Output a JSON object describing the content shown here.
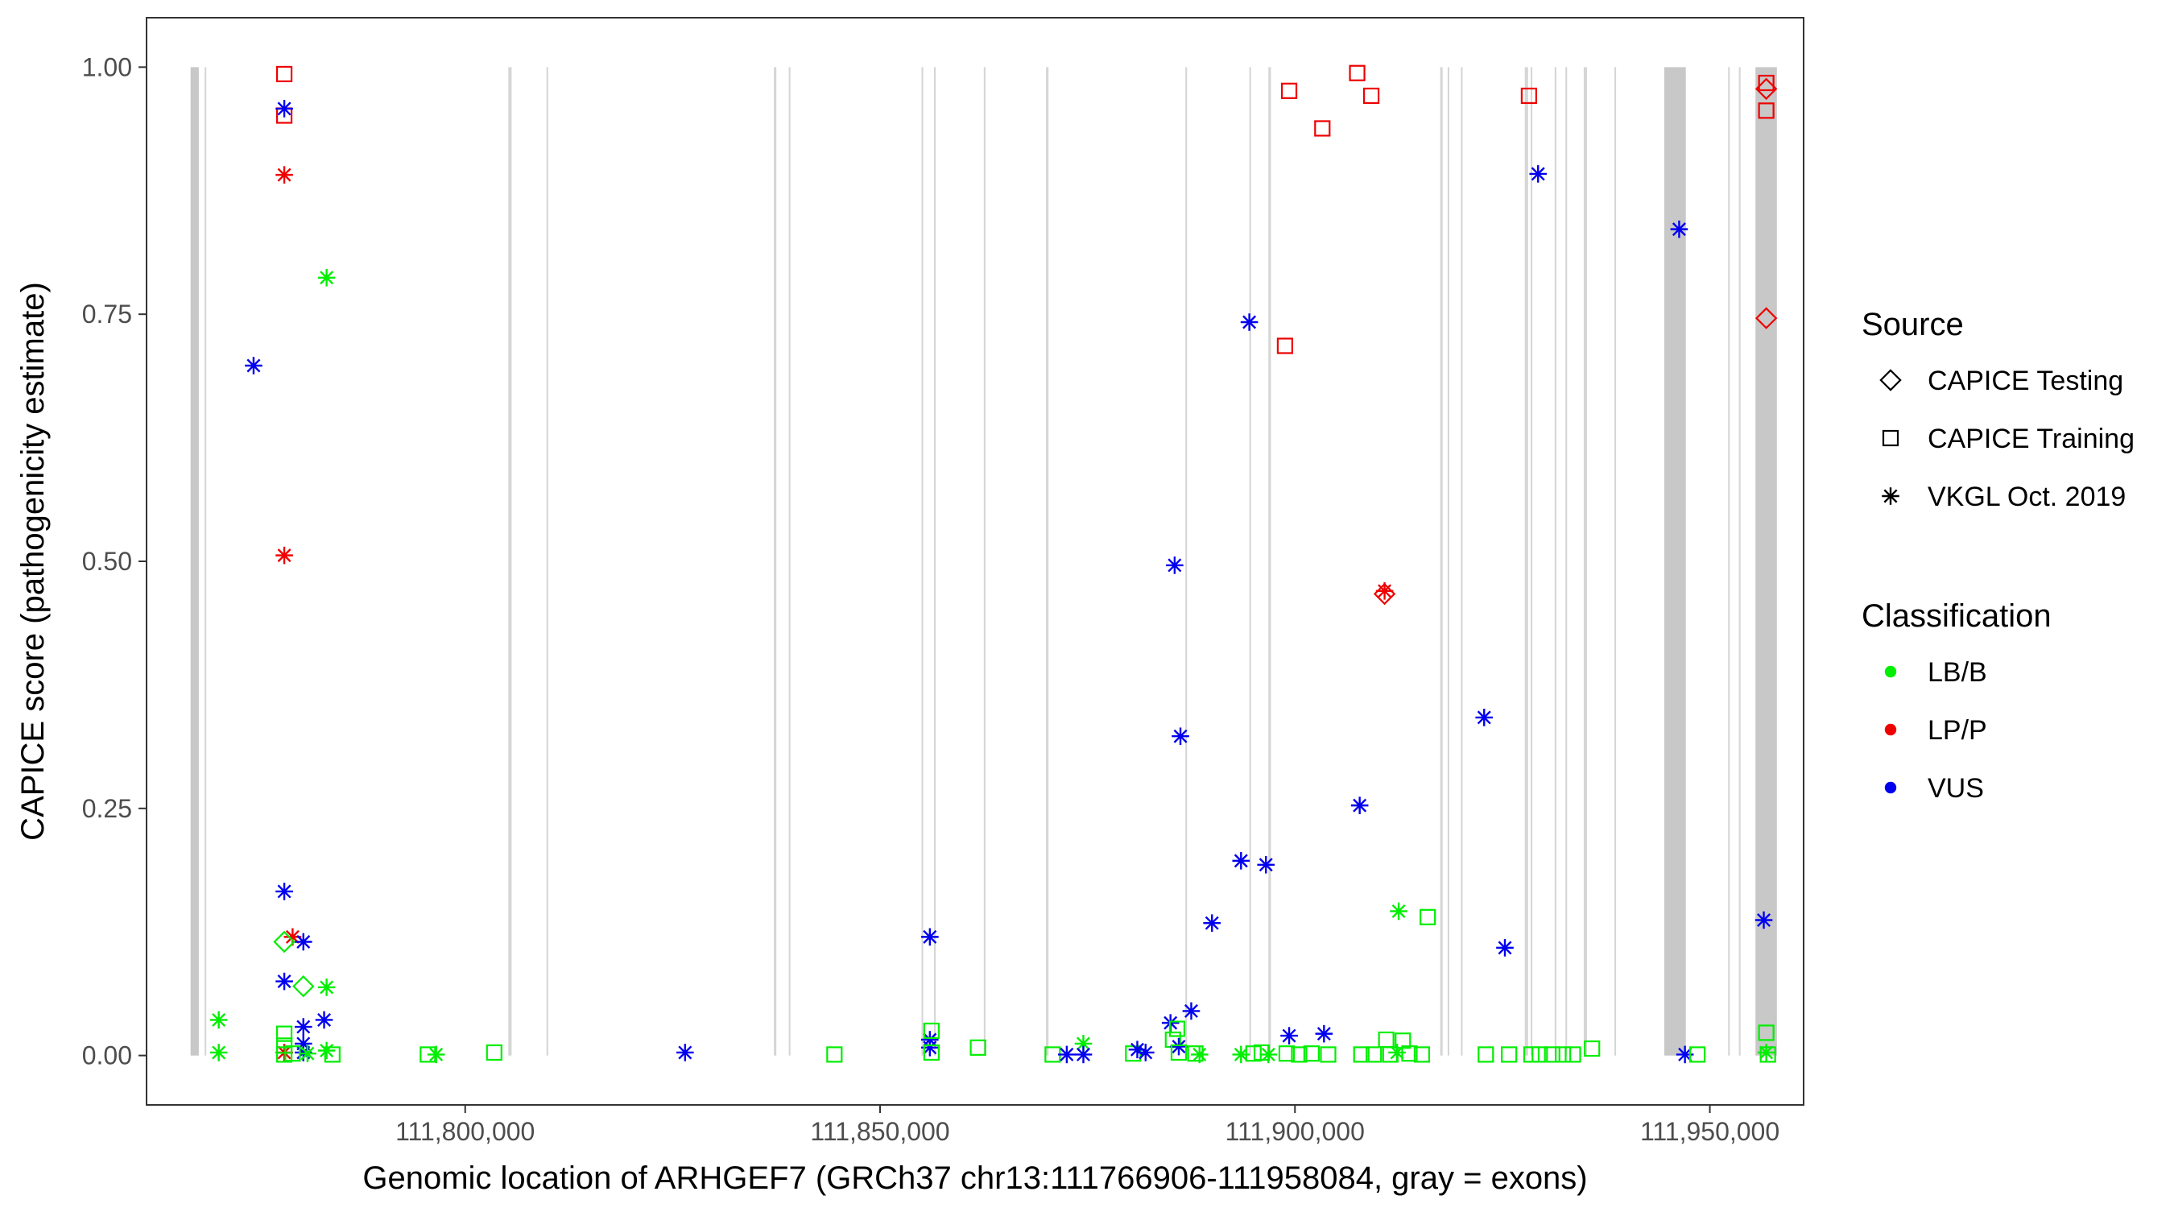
{
  "chart_data": {
    "type": "scatter",
    "xlabel": "Genomic location of ARHGEF7 (GRCh37 chr13:111766906-111958084, gray = exons)",
    "ylabel": "CAPICE score (pathogenicity estimate)",
    "xlim": [
      111761600,
      111961300
    ],
    "ylim": [
      -0.05,
      1.05
    ],
    "x_ticks": [
      {
        "value": 111800000,
        "label": "111,800,000"
      },
      {
        "value": 111850000,
        "label": "111,850,000"
      },
      {
        "value": 111900000,
        "label": "111,900,000"
      },
      {
        "value": 111950000,
        "label": "111,950,000"
      }
    ],
    "y_ticks": [
      {
        "value": 0.0,
        "label": "0.00"
      },
      {
        "value": 0.25,
        "label": "0.25"
      },
      {
        "value": 0.5,
        "label": "0.50"
      },
      {
        "value": 0.75,
        "label": "0.75"
      },
      {
        "value": 1.0,
        "label": "1.00"
      }
    ],
    "grid": false,
    "exons": [
      {
        "start": 111766906,
        "end": 111767900
      },
      {
        "start": 111768600,
        "end": 111768800
      },
      {
        "start": 111805200,
        "end": 111805600
      },
      {
        "start": 111809800,
        "end": 111810000
      },
      {
        "start": 111837200,
        "end": 111837500
      },
      {
        "start": 111839000,
        "end": 111839200
      },
      {
        "start": 111855000,
        "end": 111855200
      },
      {
        "start": 111856500,
        "end": 111856700
      },
      {
        "start": 111862500,
        "end": 111862700
      },
      {
        "start": 111870000,
        "end": 111870300
      },
      {
        "start": 111886800,
        "end": 111887000
      },
      {
        "start": 111894500,
        "end": 111894700
      },
      {
        "start": 111896800,
        "end": 111897100
      },
      {
        "start": 111917500,
        "end": 111917800
      },
      {
        "start": 111918400,
        "end": 111918600
      },
      {
        "start": 111920000,
        "end": 111920200
      },
      {
        "start": 111927700,
        "end": 111928100
      },
      {
        "start": 111928400,
        "end": 111928600
      },
      {
        "start": 111931300,
        "end": 111931500
      },
      {
        "start": 111932600,
        "end": 111932800
      },
      {
        "start": 111934800,
        "end": 111935200
      },
      {
        "start": 111938500,
        "end": 111938700
      },
      {
        "start": 111944500,
        "end": 111947100
      },
      {
        "start": 111952200,
        "end": 111952400
      },
      {
        "start": 111953500,
        "end": 111953700
      },
      {
        "start": 111955500,
        "end": 111958084
      }
    ],
    "legend": {
      "placement": "right",
      "source_title": "Source",
      "source_entries": [
        {
          "label": "CAPICE Testing",
          "shape": "diamond"
        },
        {
          "label": "CAPICE Training",
          "shape": "square"
        },
        {
          "label": "VKGL Oct. 2019",
          "shape": "asterisk"
        }
      ],
      "classification_title": "Classification",
      "classification_entries": [
        {
          "label": "LB/B",
          "color": "#00ee00"
        },
        {
          "label": "LP/P",
          "color": "#ee0000"
        },
        {
          "label": "VUS",
          "color": "#0000ee"
        }
      ]
    },
    "colors": {
      "LB/B": "#00ee00",
      "LP/P": "#ee0000",
      "VUS": "#0000ee"
    },
    "points": [
      {
        "x": 111778200,
        "y": 0.993,
        "source": "CAPICE Training",
        "class": "LP/P"
      },
      {
        "x": 111778200,
        "y": 0.951,
        "source": "CAPICE Training",
        "class": "LP/P"
      },
      {
        "x": 111778200,
        "y": 0.891,
        "source": "VKGL Oct. 2019",
        "class": "LP/P"
      },
      {
        "x": 111778200,
        "y": 0.506,
        "source": "VKGL Oct. 2019",
        "class": "LP/P"
      },
      {
        "x": 111779200,
        "y": 0.12,
        "source": "VKGL Oct. 2019",
        "class": "LP/P"
      },
      {
        "x": 111778200,
        "y": 0.003,
        "source": "VKGL Oct. 2019",
        "class": "LP/P"
      },
      {
        "x": 111778200,
        "y": 0.958,
        "source": "VKGL Oct. 2019",
        "class": "VUS"
      },
      {
        "x": 111774500,
        "y": 0.698,
        "source": "VKGL Oct. 2019",
        "class": "VUS"
      },
      {
        "x": 111778200,
        "y": 0.166,
        "source": "VKGL Oct. 2019",
        "class": "VUS"
      },
      {
        "x": 111780500,
        "y": 0.115,
        "source": "VKGL Oct. 2019",
        "class": "VUS"
      },
      {
        "x": 111778200,
        "y": 0.075,
        "source": "VKGL Oct. 2019",
        "class": "VUS"
      },
      {
        "x": 111783000,
        "y": 0.036,
        "source": "VKGL Oct. 2019",
        "class": "VUS"
      },
      {
        "x": 111780500,
        "y": 0.029,
        "source": "VKGL Oct. 2019",
        "class": "VUS"
      },
      {
        "x": 111780500,
        "y": 0.012,
        "source": "VKGL Oct. 2019",
        "class": "VUS"
      },
      {
        "x": 111780500,
        "y": 0.003,
        "source": "VKGL Oct. 2019",
        "class": "VUS"
      },
      {
        "x": 111783300,
        "y": 0.787,
        "source": "VKGL Oct. 2019",
        "class": "LB/B"
      },
      {
        "x": 111778200,
        "y": 0.115,
        "source": "CAPICE Testing",
        "class": "LB/B"
      },
      {
        "x": 111780500,
        "y": 0.07,
        "source": "CAPICE Testing",
        "class": "LB/B"
      },
      {
        "x": 111783300,
        "y": 0.069,
        "source": "VKGL Oct. 2019",
        "class": "LB/B"
      },
      {
        "x": 111770300,
        "y": 0.036,
        "source": "VKGL Oct. 2019",
        "class": "LB/B"
      },
      {
        "x": 111770300,
        "y": 0.003,
        "source": "VKGL Oct. 2019",
        "class": "LB/B"
      },
      {
        "x": 111778200,
        "y": 0.022,
        "source": "CAPICE Training",
        "class": "LB/B"
      },
      {
        "x": 111778200,
        "y": 0.01,
        "source": "CAPICE Training",
        "class": "LB/B"
      },
      {
        "x": 111778200,
        "y": 0.001,
        "source": "CAPICE Training",
        "class": "LB/B"
      },
      {
        "x": 111779200,
        "y": 0.002,
        "source": "CAPICE Training",
        "class": "LB/B"
      },
      {
        "x": 111781000,
        "y": 0.002,
        "source": "VKGL Oct. 2019",
        "class": "LB/B"
      },
      {
        "x": 111783300,
        "y": 0.005,
        "source": "VKGL Oct. 2019",
        "class": "LB/B"
      },
      {
        "x": 111784000,
        "y": 0.001,
        "source": "CAPICE Training",
        "class": "LB/B"
      },
      {
        "x": 111795500,
        "y": 0.001,
        "source": "CAPICE Training",
        "class": "LB/B"
      },
      {
        "x": 111796500,
        "y": 0.001,
        "source": "VKGL Oct. 2019",
        "class": "LB/B"
      },
      {
        "x": 111803500,
        "y": 0.003,
        "source": "CAPICE Training",
        "class": "LB/B"
      },
      {
        "x": 111826500,
        "y": 0.003,
        "source": "VKGL Oct. 2019",
        "class": "VUS"
      },
      {
        "x": 111844500,
        "y": 0.001,
        "source": "CAPICE Training",
        "class": "LB/B"
      },
      {
        "x": 111856000,
        "y": 0.12,
        "source": "VKGL Oct. 2019",
        "class": "VUS"
      },
      {
        "x": 111856000,
        "y": 0.016,
        "source": "VKGL Oct. 2019",
        "class": "VUS"
      },
      {
        "x": 111856000,
        "y": 0.008,
        "source": "VKGL Oct. 2019",
        "class": "VUS"
      },
      {
        "x": 111856200,
        "y": 0.025,
        "source": "CAPICE Training",
        "class": "LB/B"
      },
      {
        "x": 111856200,
        "y": 0.003,
        "source": "CAPICE Training",
        "class": "LB/B"
      },
      {
        "x": 111861800,
        "y": 0.008,
        "source": "CAPICE Training",
        "class": "LB/B"
      },
      {
        "x": 111870800,
        "y": 0.001,
        "source": "CAPICE Training",
        "class": "LB/B"
      },
      {
        "x": 111872500,
        "y": 0.001,
        "source": "VKGL Oct. 2019",
        "class": "VUS"
      },
      {
        "x": 111874500,
        "y": 0.012,
        "source": "VKGL Oct. 2019",
        "class": "LB/B"
      },
      {
        "x": 111874500,
        "y": 0.001,
        "source": "VKGL Oct. 2019",
        "class": "VUS"
      },
      {
        "x": 111880500,
        "y": 0.002,
        "source": "CAPICE Training",
        "class": "LB/B"
      },
      {
        "x": 111881000,
        "y": 0.006,
        "source": "VKGL Oct. 2019",
        "class": "VUS"
      },
      {
        "x": 111882000,
        "y": 0.003,
        "source": "VKGL Oct. 2019",
        "class": "VUS"
      },
      {
        "x": 111885000,
        "y": 0.033,
        "source": "VKGL Oct. 2019",
        "class": "VUS"
      },
      {
        "x": 111885300,
        "y": 0.016,
        "source": "CAPICE Training",
        "class": "LB/B"
      },
      {
        "x": 111885500,
        "y": 0.496,
        "source": "VKGL Oct. 2019",
        "class": "VUS"
      },
      {
        "x": 111885800,
        "y": 0.027,
        "source": "CAPICE Training",
        "class": "LB/B"
      },
      {
        "x": 111886200,
        "y": 0.323,
        "source": "VKGL Oct. 2019",
        "class": "VUS"
      },
      {
        "x": 111886000,
        "y": 0.009,
        "source": "VKGL Oct. 2019",
        "class": "VUS"
      },
      {
        "x": 111886000,
        "y": 0.003,
        "source": "CAPICE Training",
        "class": "LB/B"
      },
      {
        "x": 111887500,
        "y": 0.045,
        "source": "VKGL Oct. 2019",
        "class": "VUS"
      },
      {
        "x": 111888000,
        "y": 0.002,
        "source": "CAPICE Training",
        "class": "LB/B"
      },
      {
        "x": 111888500,
        "y": 0.001,
        "source": "VKGL Oct. 2019",
        "class": "LB/B"
      },
      {
        "x": 111890000,
        "y": 0.134,
        "source": "VKGL Oct. 2019",
        "class": "VUS"
      },
      {
        "x": 111893500,
        "y": 0.197,
        "source": "VKGL Oct. 2019",
        "class": "VUS"
      },
      {
        "x": 111893500,
        "y": 0.001,
        "source": "VKGL Oct. 2019",
        "class": "LB/B"
      },
      {
        "x": 111894500,
        "y": 0.742,
        "source": "VKGL Oct. 2019",
        "class": "VUS"
      },
      {
        "x": 111895000,
        "y": 0.002,
        "source": "CAPICE Training",
        "class": "LB/B"
      },
      {
        "x": 111896000,
        "y": 0.003,
        "source": "CAPICE Training",
        "class": "LB/B"
      },
      {
        "x": 111896500,
        "y": 0.193,
        "source": "VKGL Oct. 2019",
        "class": "VUS"
      },
      {
        "x": 111896800,
        "y": 0.001,
        "source": "VKGL Oct. 2019",
        "class": "LB/B"
      },
      {
        "x": 111898800,
        "y": 0.718,
        "source": "CAPICE Training",
        "class": "LP/P"
      },
      {
        "x": 111899300,
        "y": 0.976,
        "source": "CAPICE Training",
        "class": "LP/P"
      },
      {
        "x": 111899300,
        "y": 0.02,
        "source": "VKGL Oct. 2019",
        "class": "VUS"
      },
      {
        "x": 111899000,
        "y": 0.002,
        "source": "CAPICE Training",
        "class": "LB/B"
      },
      {
        "x": 111900500,
        "y": 0.001,
        "source": "CAPICE Training",
        "class": "LB/B"
      },
      {
        "x": 111902000,
        "y": 0.002,
        "source": "CAPICE Training",
        "class": "LB/B"
      },
      {
        "x": 111903300,
        "y": 0.938,
        "source": "CAPICE Training",
        "class": "LP/P"
      },
      {
        "x": 111903500,
        "y": 0.022,
        "source": "VKGL Oct. 2019",
        "class": "VUS"
      },
      {
        "x": 111904000,
        "y": 0.001,
        "source": "CAPICE Training",
        "class": "LB/B"
      },
      {
        "x": 111907500,
        "y": 0.994,
        "source": "CAPICE Training",
        "class": "LP/P"
      },
      {
        "x": 111907800,
        "y": 0.253,
        "source": "VKGL Oct. 2019",
        "class": "VUS"
      },
      {
        "x": 111908000,
        "y": 0.001,
        "source": "CAPICE Training",
        "class": "LB/B"
      },
      {
        "x": 111909200,
        "y": 0.971,
        "source": "CAPICE Training",
        "class": "LP/P"
      },
      {
        "x": 111909500,
        "y": 0.001,
        "source": "CAPICE Training",
        "class": "LB/B"
      },
      {
        "x": 111910800,
        "y": 0.467,
        "source": "CAPICE Testing",
        "class": "LP/P"
      },
      {
        "x": 111910800,
        "y": 0.47,
        "source": "VKGL Oct. 2019",
        "class": "LP/P"
      },
      {
        "x": 111911000,
        "y": 0.016,
        "source": "CAPICE Training",
        "class": "LB/B"
      },
      {
        "x": 111911500,
        "y": 0.001,
        "source": "CAPICE Training",
        "class": "LB/B"
      },
      {
        "x": 111912500,
        "y": 0.146,
        "source": "VKGL Oct. 2019",
        "class": "LB/B"
      },
      {
        "x": 111912300,
        "y": 0.003,
        "source": "VKGL Oct. 2019",
        "class": "LB/B"
      },
      {
        "x": 111913000,
        "y": 0.015,
        "source": "CAPICE Training",
        "class": "LB/B"
      },
      {
        "x": 111913800,
        "y": 0.002,
        "source": "CAPICE Training",
        "class": "LB/B"
      },
      {
        "x": 111915300,
        "y": 0.001,
        "source": "CAPICE Training",
        "class": "LB/B"
      },
      {
        "x": 111916000,
        "y": 0.14,
        "source": "CAPICE Training",
        "class": "LB/B"
      },
      {
        "x": 111922800,
        "y": 0.342,
        "source": "VKGL Oct. 2019",
        "class": "VUS"
      },
      {
        "x": 111923000,
        "y": 0.001,
        "source": "CAPICE Training",
        "class": "LB/B"
      },
      {
        "x": 111925300,
        "y": 0.109,
        "source": "VKGL Oct. 2019",
        "class": "VUS"
      },
      {
        "x": 111925800,
        "y": 0.001,
        "source": "CAPICE Training",
        "class": "LB/B"
      },
      {
        "x": 111928200,
        "y": 0.971,
        "source": "CAPICE Training",
        "class": "LP/P"
      },
      {
        "x": 111928500,
        "y": 0.001,
        "source": "CAPICE Training",
        "class": "LB/B"
      },
      {
        "x": 111929300,
        "y": 0.892,
        "source": "VKGL Oct. 2019",
        "class": "VUS"
      },
      {
        "x": 111929500,
        "y": 0.001,
        "source": "CAPICE Training",
        "class": "LB/B"
      },
      {
        "x": 111931000,
        "y": 0.001,
        "source": "CAPICE Training",
        "class": "LB/B"
      },
      {
        "x": 111932300,
        "y": 0.001,
        "source": "CAPICE Training",
        "class": "LB/B"
      },
      {
        "x": 111933500,
        "y": 0.001,
        "source": "CAPICE Training",
        "class": "LB/B"
      },
      {
        "x": 111935800,
        "y": 0.007,
        "source": "CAPICE Training",
        "class": "LB/B"
      },
      {
        "x": 111946300,
        "y": 0.836,
        "source": "VKGL Oct. 2019",
        "class": "VUS"
      },
      {
        "x": 111947000,
        "y": 0.001,
        "source": "VKGL Oct. 2019",
        "class": "VUS"
      },
      {
        "x": 111948500,
        "y": 0.001,
        "source": "CAPICE Training",
        "class": "LB/B"
      },
      {
        "x": 111956800,
        "y": 0.984,
        "source": "CAPICE Training",
        "class": "LP/P"
      },
      {
        "x": 111956800,
        "y": 0.978,
        "source": "CAPICE Testing",
        "class": "LP/P"
      },
      {
        "x": 111956800,
        "y": 0.956,
        "source": "CAPICE Training",
        "class": "LP/P"
      },
      {
        "x": 111956800,
        "y": 0.746,
        "source": "CAPICE Testing",
        "class": "LP/P"
      },
      {
        "x": 111956500,
        "y": 0.137,
        "source": "VKGL Oct. 2019",
        "class": "VUS"
      },
      {
        "x": 111956800,
        "y": 0.023,
        "source": "CAPICE Training",
        "class": "LB/B"
      },
      {
        "x": 111956800,
        "y": 0.003,
        "source": "VKGL Oct. 2019",
        "class": "LB/B"
      },
      {
        "x": 111957000,
        "y": 0.001,
        "source": "CAPICE Training",
        "class": "LB/B"
      }
    ]
  }
}
